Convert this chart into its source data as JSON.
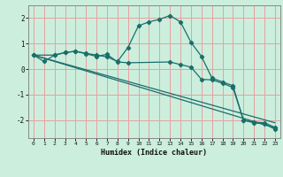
{
  "xlabel": "Humidex (Indice chaleur)",
  "background_color": "#cceedd",
  "grid_color": "#e8a0a0",
  "line_color": "#1a6e6a",
  "xlim": [
    -0.5,
    23.5
  ],
  "ylim": [
    -2.7,
    2.5
  ],
  "xticks": [
    0,
    1,
    2,
    3,
    4,
    5,
    6,
    7,
    8,
    9,
    10,
    11,
    12,
    13,
    14,
    15,
    16,
    17,
    18,
    19,
    20,
    21,
    22,
    23
  ],
  "yticks": [
    -2,
    -1,
    0,
    1,
    2
  ],
  "line1_x": [
    0,
    1,
    2,
    3,
    4,
    5,
    6,
    7,
    8,
    9,
    10,
    11,
    12,
    13,
    14,
    15,
    16,
    17,
    18,
    19,
    20,
    21,
    22,
    23
  ],
  "line1_y": [
    0.55,
    0.3,
    0.55,
    0.65,
    0.7,
    0.62,
    0.55,
    0.48,
    0.3,
    0.85,
    1.7,
    1.85,
    1.95,
    2.1,
    1.85,
    1.05,
    0.5,
    -0.35,
    -0.5,
    -0.65,
    -2.0,
    -2.1,
    -2.15,
    -2.35
  ],
  "line2_x": [
    0,
    2,
    3,
    4,
    5,
    6,
    7,
    8,
    9,
    13,
    14,
    15,
    16,
    17,
    18,
    19,
    20,
    21,
    22,
    23
  ],
  "line2_y": [
    0.55,
    0.55,
    0.65,
    0.7,
    0.6,
    0.5,
    0.58,
    0.28,
    0.25,
    0.28,
    0.18,
    0.08,
    -0.4,
    -0.42,
    -0.55,
    -0.72,
    -2.0,
    -2.08,
    -2.1,
    -2.28
  ],
  "line3_x": [
    0,
    23
  ],
  "line3_y": [
    0.55,
    -2.1
  ],
  "line4_x": [
    0,
    23
  ],
  "line4_y": [
    0.55,
    -2.3
  ]
}
